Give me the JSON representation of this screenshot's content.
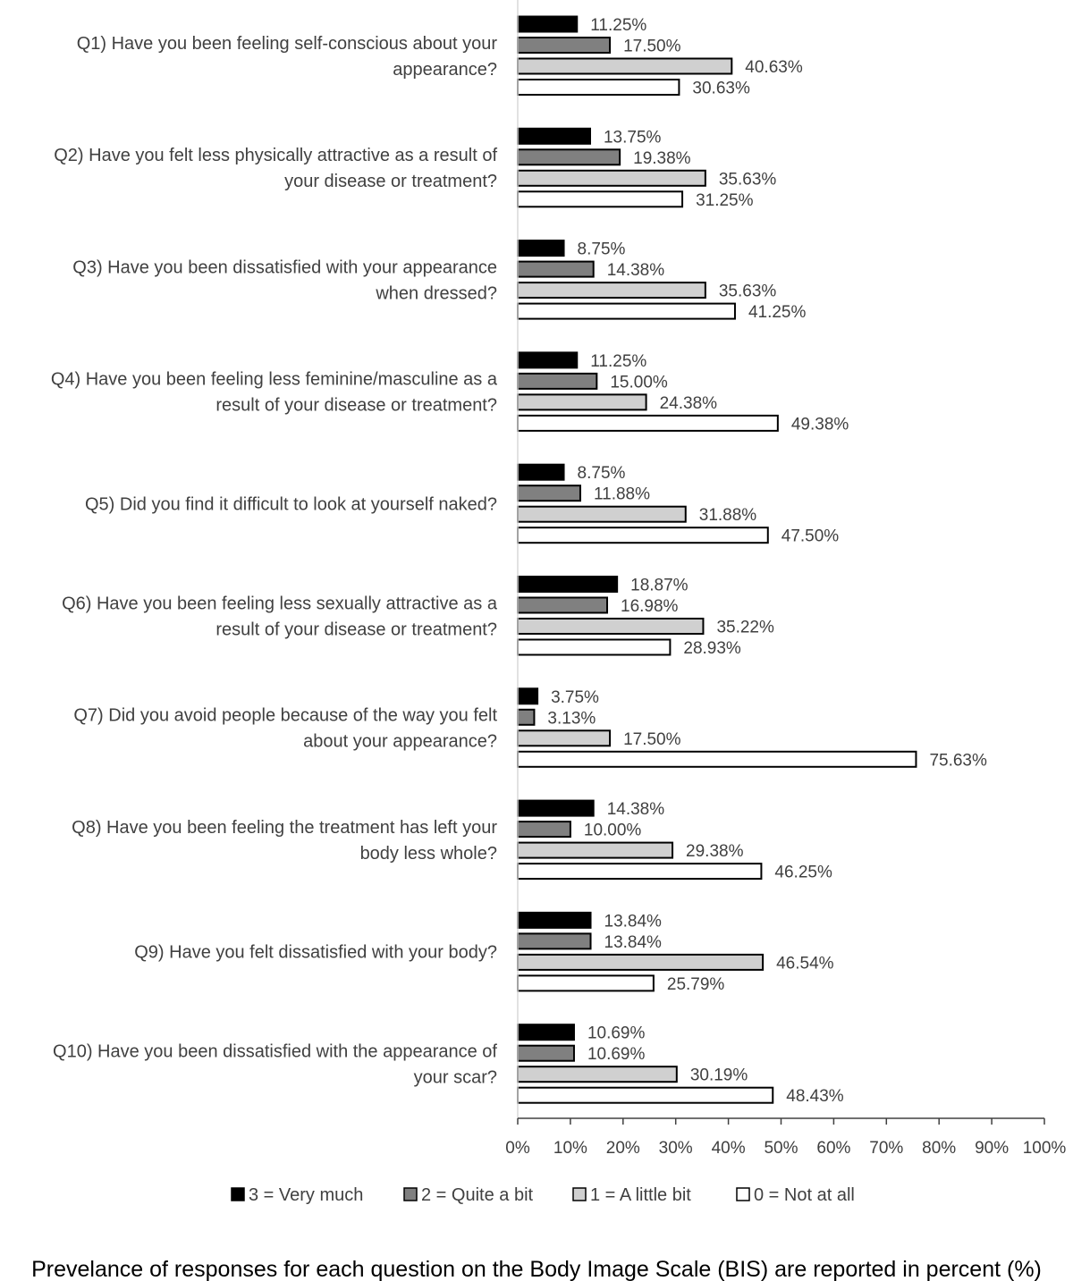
{
  "chart_data": {
    "type": "bar",
    "orientation": "horizontal",
    "caption": "Prevelance of responses for each question on the Body Image Scale (BIS) are reported in percent (%)",
    "categories": [
      [
        "Q1) Have you been feeling self-conscious about your",
        "appearance?"
      ],
      [
        "Q2) Have you felt less physically attractive as a result of",
        "your disease or treatment?"
      ],
      [
        "Q3) Have you been dissatisfied with your appearance",
        "when dressed?"
      ],
      [
        "Q4) Have you been feeling less feminine/masculine as a",
        "result of your disease or treatment?"
      ],
      [
        "Q5) Did you find it difficult to look at yourself naked?"
      ],
      [
        "Q6) Have you been feeling less sexually attractive as a",
        "result of your disease or treatment?"
      ],
      [
        "Q7) Did you avoid people because of the way you felt",
        "about your appearance?"
      ],
      [
        "Q8) Have you been feeling the treatment has left your",
        "body less whole?"
      ],
      [
        "Q9) Have you felt dissatisfied with your body?"
      ],
      [
        "Q10) Have you been dissatisfied with the appearance of",
        "your scar?"
      ]
    ],
    "series": [
      {
        "name": "3 = Very much",
        "color": "#000000",
        "values": [
          11.25,
          13.75,
          8.75,
          11.25,
          8.75,
          18.87,
          3.75,
          14.38,
          13.84,
          10.69
        ],
        "labels": [
          "11.25%",
          "13.75%",
          "8.75%",
          "11.25%",
          "8.75%",
          "18.87%",
          "3.75%",
          "14.38%",
          "13.84%",
          "10.69%"
        ]
      },
      {
        "name": "2 = Quite a bit",
        "color": "#808080",
        "values": [
          17.5,
          19.38,
          14.38,
          15.0,
          11.88,
          16.98,
          3.13,
          10.0,
          13.84,
          10.69
        ],
        "labels": [
          "17.50%",
          "19.38%",
          "14.38%",
          "15.00%",
          "11.88%",
          "16.98%",
          "3.13%",
          "10.00%",
          "13.84%",
          "10.69%"
        ]
      },
      {
        "name": "1 = A little bit",
        "color": "#d0d0d0",
        "values": [
          40.63,
          35.63,
          35.63,
          24.38,
          31.88,
          35.22,
          17.5,
          29.38,
          46.54,
          30.19
        ],
        "labels": [
          "40.63%",
          "35.63%",
          "35.63%",
          "24.38%",
          "31.88%",
          "35.22%",
          "17.50%",
          "29.38%",
          "46.54%",
          "30.19%"
        ]
      },
      {
        "name": "0 = Not at all",
        "color": "#ffffff",
        "values": [
          30.63,
          31.25,
          41.25,
          49.38,
          47.5,
          28.93,
          75.63,
          46.25,
          25.79,
          48.43
        ],
        "labels": [
          "30.63%",
          "31.25%",
          "41.25%",
          "49.38%",
          "47.50%",
          "28.93%",
          "75.63%",
          "46.25%",
          "25.79%",
          "48.43%"
        ]
      }
    ],
    "x_ticks": [
      "0%",
      "10%",
      "20%",
      "30%",
      "40%",
      "50%",
      "60%",
      "70%",
      "80%",
      "90%",
      "100%"
    ],
    "xlim": [
      0,
      100
    ],
    "grid": false,
    "legend_position": "bottom"
  }
}
